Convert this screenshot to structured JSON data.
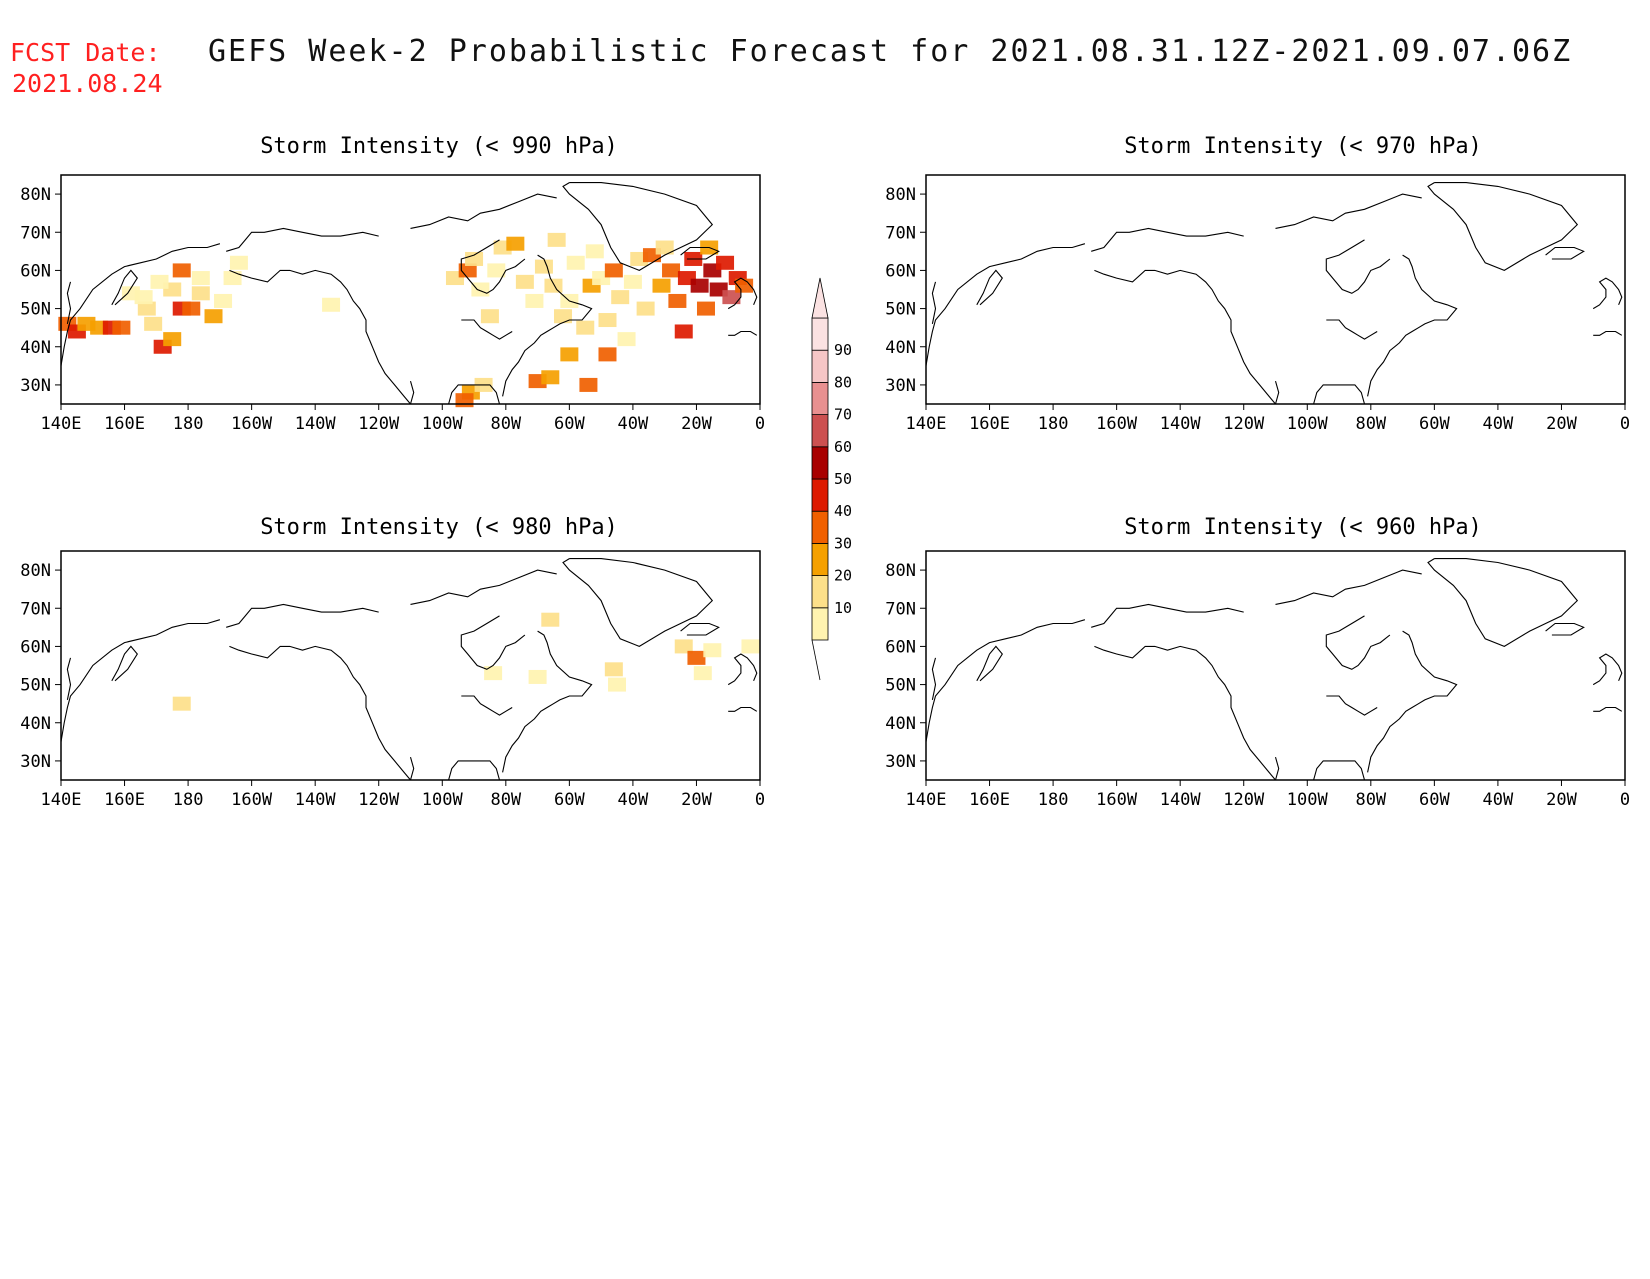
{
  "header": {
    "fcst_label": "FCST Date:",
    "fcst_date": "2021.08.24",
    "title": "GEFS Week-2 Probabilistic Forecast for 2021.08.31.12Z-2021.09.07.06Z"
  },
  "axes": {
    "lon_labels": [
      "140E",
      "160E",
      "180",
      "160W",
      "140W",
      "120W",
      "100W",
      "80W",
      "60W",
      "40W",
      "20W",
      "0"
    ],
    "lat_labels": [
      "80N",
      "70N",
      "60N",
      "50N",
      "40N",
      "30N"
    ]
  },
  "panels": [
    {
      "title": "Storm Intensity (< 990 hPa)"
    },
    {
      "title": "Storm Intensity (< 970 hPa)"
    },
    {
      "title": "Storm Intensity (< 980 hPa)"
    },
    {
      "title": "Storm Intensity (< 960 hPa)"
    }
  ],
  "colorbar": {
    "labels": [
      "10",
      "20",
      "30",
      "40",
      "50",
      "60",
      "70",
      "80",
      "90"
    ],
    "colors": [
      "#fff3b0",
      "#fde08a",
      "#f5a000",
      "#f06000",
      "#dd1a00",
      "#a80000",
      "#cc5050",
      "#e89090",
      "#f6c6c6",
      "#fbe2e2"
    ]
  },
  "chart_data": [
    {
      "type": "heatmap",
      "title": "Storm Intensity (< 990 hPa)",
      "x_range": [
        "140E",
        "0"
      ],
      "y_range": [
        "25N",
        "85N"
      ],
      "cells": [
        {
          "lon": 142,
          "lat": 46,
          "v": 45
        },
        {
          "lon": 145,
          "lat": 44,
          "v": 55
        },
        {
          "lon": 148,
          "lat": 46,
          "v": 30
        },
        {
          "lon": 152,
          "lat": 45,
          "v": 35
        },
        {
          "lon": 156,
          "lat": 45,
          "v": 50
        },
        {
          "lon": 159,
          "lat": 45,
          "v": 40
        },
        {
          "lon": 162,
          "lat": 54,
          "v": 15
        },
        {
          "lon": 167,
          "lat": 50,
          "v": 20
        },
        {
          "lon": 169,
          "lat": 46,
          "v": 25
        },
        {
          "lon": 172,
          "lat": 40,
          "v": 55
        },
        {
          "lon": 175,
          "lat": 42,
          "v": 30
        },
        {
          "lon": 178,
          "lat": 50,
          "v": 50
        },
        {
          "lon": 181,
          "lat": 50,
          "v": 40
        },
        {
          "lon": 184,
          "lat": 54,
          "v": 20
        },
        {
          "lon": 178,
          "lat": 60,
          "v": 40
        },
        {
          "lon": 184,
          "lat": 58,
          "v": 15
        },
        {
          "lon": 188,
          "lat": 48,
          "v": 30
        },
        {
          "lon": 191,
          "lat": 52,
          "v": 15
        },
        {
          "lon": 194,
          "lat": 58,
          "v": 10
        },
        {
          "lon": 196,
          "lat": 62,
          "v": 15
        },
        {
          "lon": 175,
          "lat": 55,
          "v": 20
        },
        {
          "lon": 171,
          "lat": 57,
          "v": 15
        },
        {
          "lon": 166,
          "lat": 53,
          "v": 15
        },
        {
          "lon": 225,
          "lat": 51,
          "v": 15
        },
        {
          "lon": 264,
          "lat": 58,
          "v": 20
        },
        {
          "lon": 268,
          "lat": 60,
          "v": 40
        },
        {
          "lon": 270,
          "lat": 63,
          "v": 20
        },
        {
          "lon": 272,
          "lat": 55,
          "v": 15
        },
        {
          "lon": 275,
          "lat": 48,
          "v": 20
        },
        {
          "lon": 277,
          "lat": 60,
          "v": 15
        },
        {
          "lon": 279,
          "lat": 66,
          "v": 25
        },
        {
          "lon": 283,
          "lat": 67,
          "v": 30
        },
        {
          "lon": 286,
          "lat": 57,
          "v": 20
        },
        {
          "lon": 289,
          "lat": 52,
          "v": 15
        },
        {
          "lon": 292,
          "lat": 61,
          "v": 20
        },
        {
          "lon": 295,
          "lat": 56,
          "v": 25
        },
        {
          "lon": 298,
          "lat": 48,
          "v": 20
        },
        {
          "lon": 300,
          "lat": 52,
          "v": 15
        },
        {
          "lon": 302,
          "lat": 62,
          "v": 15
        },
        {
          "lon": 305,
          "lat": 45,
          "v": 20
        },
        {
          "lon": 307,
          "lat": 56,
          "v": 30
        },
        {
          "lon": 310,
          "lat": 58,
          "v": 15
        },
        {
          "lon": 312,
          "lat": 47,
          "v": 25
        },
        {
          "lon": 314,
          "lat": 60,
          "v": 40
        },
        {
          "lon": 316,
          "lat": 53,
          "v": 20
        },
        {
          "lon": 318,
          "lat": 42,
          "v": 15
        },
        {
          "lon": 320,
          "lat": 57,
          "v": 15
        },
        {
          "lon": 322,
          "lat": 63,
          "v": 20
        },
        {
          "lon": 324,
          "lat": 50,
          "v": 25
        },
        {
          "lon": 326,
          "lat": 64,
          "v": 40
        },
        {
          "lon": 329,
          "lat": 56,
          "v": 35
        },
        {
          "lon": 332,
          "lat": 60,
          "v": 45
        },
        {
          "lon": 334,
          "lat": 52,
          "v": 40
        },
        {
          "lon": 336,
          "lat": 44,
          "v": 55
        },
        {
          "lon": 337,
          "lat": 58,
          "v": 50
        },
        {
          "lon": 339,
          "lat": 63,
          "v": 55
        },
        {
          "lon": 341,
          "lat": 56,
          "v": 60
        },
        {
          "lon": 343,
          "lat": 50,
          "v": 45
        },
        {
          "lon": 345,
          "lat": 60,
          "v": 65
        },
        {
          "lon": 347,
          "lat": 55,
          "v": 60
        },
        {
          "lon": 349,
          "lat": 62,
          "v": 55
        },
        {
          "lon": 351,
          "lat": 53,
          "v": 70
        },
        {
          "lon": 353,
          "lat": 58,
          "v": 50
        },
        {
          "lon": 355,
          "lat": 56,
          "v": 45
        },
        {
          "lon": 344,
          "lat": 66,
          "v": 30
        },
        {
          "lon": 330,
          "lat": 66,
          "v": 25
        },
        {
          "lon": 290,
          "lat": 31,
          "v": 40
        },
        {
          "lon": 294,
          "lat": 32,
          "v": 30
        },
        {
          "lon": 300,
          "lat": 38,
          "v": 35
        },
        {
          "lon": 306,
          "lat": 30,
          "v": 40
        },
        {
          "lon": 312,
          "lat": 38,
          "v": 45
        },
        {
          "lon": 269,
          "lat": 28,
          "v": 35
        },
        {
          "lon": 273,
          "lat": 30,
          "v": 20
        },
        {
          "lon": 267,
          "lat": 26,
          "v": 45
        },
        {
          "lon": 296,
          "lat": 68,
          "v": 20
        },
        {
          "lon": 308,
          "lat": 65,
          "v": 15
        }
      ]
    },
    {
      "type": "heatmap",
      "title": "Storm Intensity (< 970 hPa)",
      "cells": []
    },
    {
      "type": "heatmap",
      "title": "Storm Intensity (< 980 hPa)",
      "cells": [
        {
          "lon": 178,
          "lat": 45,
          "v": 20
        },
        {
          "lon": 290,
          "lat": 52,
          "v": 15
        },
        {
          "lon": 294,
          "lat": 67,
          "v": 25
        },
        {
          "lon": 276,
          "lat": 53,
          "v": 15
        },
        {
          "lon": 314,
          "lat": 54,
          "v": 20
        },
        {
          "lon": 315,
          "lat": 50,
          "v": 15
        },
        {
          "lon": 336,
          "lat": 60,
          "v": 20
        },
        {
          "lon": 340,
          "lat": 57,
          "v": 40
        },
        {
          "lon": 345,
          "lat": 59,
          "v": 15
        },
        {
          "lon": 357,
          "lat": 60,
          "v": 10
        },
        {
          "lon": 342,
          "lat": 53,
          "v": 15
        }
      ]
    },
    {
      "type": "heatmap",
      "title": "Storm Intensity (< 960 hPa)",
      "cells": []
    }
  ]
}
